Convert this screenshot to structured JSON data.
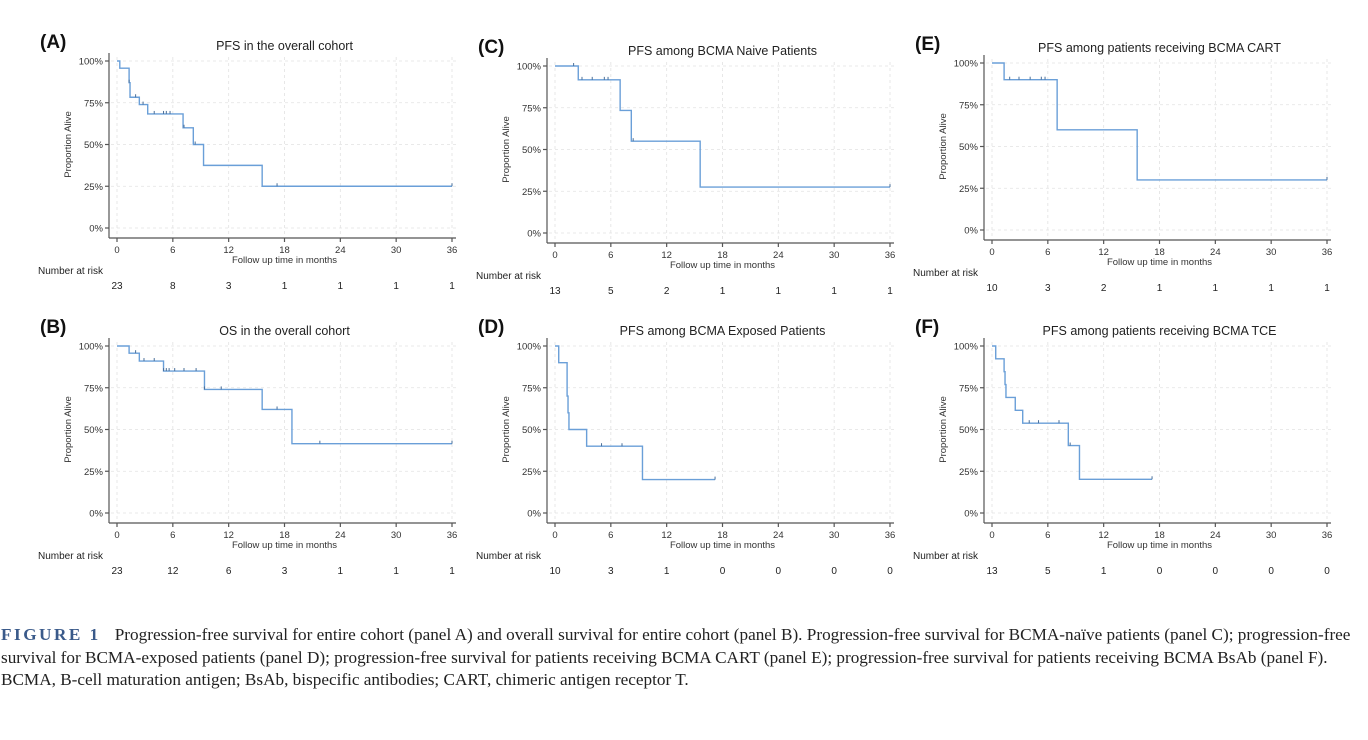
{
  "figure": {
    "label": "FIGURE 1",
    "caption": "Progression-free survival for entire cohort (panel A) and overall survival for entire cohort (panel B). Progression-free survival for BCMA-naïve patients (panel C); progression-free survival for BCMA-exposed patients (panel D); progression-free survival for patients receiving BCMA CART (panel E); progression-free survival for patients receiving BCMA BsAb (panel F). BCMA, B-cell maturation antigen; BsAb, bispecific antibodies; CART, chimeric antigen receptor T."
  },
  "style": {
    "curve_color": "#6a9fd8",
    "label_color": "#3a5a8a"
  },
  "chart_data": [
    {
      "id": "A",
      "type": "line",
      "panel_label": "(A)",
      "title": "PFS in the overall cohort",
      "xlabel": "Follow up time in months",
      "ylabel": "Proportion Alive",
      "xlim": [
        0,
        36
      ],
      "ylim": [
        0,
        1
      ],
      "grid": true,
      "xticks": [
        "0",
        "6",
        "12",
        "18",
        "24",
        "30",
        "36"
      ],
      "yticks": [
        "0%",
        "25%",
        "50%",
        "75%",
        "100%"
      ],
      "risk_label": "Number at risk",
      "risk": [
        23,
        8,
        3,
        1,
        1,
        1,
        1
      ],
      "steps": [
        [
          0,
          1.0
        ],
        [
          0.3,
          0.957
        ],
        [
          1.3,
          0.87
        ],
        [
          1.4,
          0.783
        ],
        [
          2.4,
          0.739
        ],
        [
          3.3,
          0.683
        ],
        [
          7.1,
          0.6
        ],
        [
          8.2,
          0.5
        ],
        [
          9.3,
          0.375
        ],
        [
          15.6,
          0.25
        ]
      ],
      "end": 36,
      "censored": [
        1.3,
        2.0,
        2.8,
        4.0,
        5.0,
        5.3,
        5.7,
        7.2,
        8.4,
        17.2,
        36
      ]
    },
    {
      "id": "B",
      "type": "line",
      "panel_label": "(B)",
      "title": "OS in the overall cohort",
      "xlabel": "Follow up time in months",
      "ylabel": "Proportion Alive",
      "xlim": [
        0,
        36
      ],
      "ylim": [
        0,
        1
      ],
      "grid": true,
      "xticks": [
        "0",
        "6",
        "12",
        "18",
        "24",
        "30",
        "36"
      ],
      "yticks": [
        "0%",
        "25%",
        "50%",
        "75%",
        "100%"
      ],
      "risk_label": "Number at risk",
      "risk": [
        23,
        12,
        6,
        3,
        1,
        1,
        1
      ],
      "steps": [
        [
          0,
          1.0
        ],
        [
          1.3,
          0.957
        ],
        [
          2.4,
          0.91
        ],
        [
          5.0,
          0.85
        ],
        [
          9.4,
          0.74
        ],
        [
          15.6,
          0.62
        ],
        [
          18.8,
          0.415
        ]
      ],
      "end": 36,
      "censored": [
        2.0,
        2.9,
        4.0,
        5.0,
        5.3,
        5.6,
        6.2,
        7.2,
        8.5,
        9.4,
        11.2,
        17.2,
        21.8,
        36
      ]
    },
    {
      "id": "C",
      "type": "line",
      "panel_label": "(C)",
      "title": "PFS among BCMA Naive Patients",
      "xlabel": "Follow up time in months",
      "ylabel": "Proportion Alive",
      "xlim": [
        0,
        36
      ],
      "ylim": [
        0,
        1
      ],
      "grid": true,
      "xticks": [
        "0",
        "6",
        "12",
        "18",
        "24",
        "30",
        "36"
      ],
      "yticks": [
        "0%",
        "25%",
        "50%",
        "75%",
        "100%"
      ],
      "risk_label": "Number at risk",
      "risk": [
        13,
        5,
        2,
        1,
        1,
        1,
        1
      ],
      "steps": [
        [
          0,
          1.0
        ],
        [
          2.5,
          0.917
        ],
        [
          7.0,
          0.734
        ],
        [
          8.2,
          0.55
        ],
        [
          15.6,
          0.275
        ]
      ],
      "end": 36,
      "censored": [
        2.0,
        2.9,
        4.0,
        5.3,
        5.7,
        8.4,
        36
      ]
    },
    {
      "id": "D",
      "type": "line",
      "panel_label": "(D)",
      "title": "PFS among BCMA Exposed Patients",
      "xlabel": "Follow up time in months",
      "ylabel": "Proportion Alive",
      "xlim": [
        0,
        36
      ],
      "ylim": [
        0,
        1
      ],
      "grid": true,
      "xticks": [
        "0",
        "6",
        "12",
        "18",
        "24",
        "30",
        "36"
      ],
      "yticks": [
        "0%",
        "25%",
        "50%",
        "75%",
        "100%"
      ],
      "risk_label": "Number at risk",
      "risk": [
        10,
        3,
        1,
        0,
        0,
        0,
        0
      ],
      "steps": [
        [
          0,
          1.0
        ],
        [
          0.4,
          0.9
        ],
        [
          1.3,
          0.7
        ],
        [
          1.4,
          0.6
        ],
        [
          1.5,
          0.5
        ],
        [
          3.4,
          0.4
        ],
        [
          9.4,
          0.2
        ]
      ],
      "end": 17.2,
      "censored": [
        5.0,
        7.2,
        17.2
      ]
    },
    {
      "id": "E",
      "type": "line",
      "panel_label": "(E)",
      "title": "PFS among patients receiving BCMA CART",
      "xlabel": "Follow up time in months",
      "ylabel": "Proportion Alive",
      "xlim": [
        0,
        36
      ],
      "ylim": [
        0,
        1
      ],
      "grid": true,
      "xticks": [
        "0",
        "6",
        "12",
        "18",
        "24",
        "30",
        "36"
      ],
      "yticks": [
        "0%",
        "25%",
        "50%",
        "75%",
        "100%"
      ],
      "risk_label": "Number at risk",
      "risk": [
        10,
        3,
        2,
        1,
        1,
        1,
        1
      ],
      "steps": [
        [
          0,
          1.0
        ],
        [
          1.3,
          0.9
        ],
        [
          7.0,
          0.6
        ],
        [
          15.6,
          0.3
        ]
      ],
      "end": 36,
      "censored": [
        1.9,
        2.9,
        4.1,
        5.3,
        5.7,
        36
      ]
    },
    {
      "id": "F",
      "type": "line",
      "panel_label": "(F)",
      "title": "PFS among patients receiving BCMA TCE",
      "xlabel": "Follow up time in months",
      "ylabel": "Proportion Alive",
      "xlim": [
        0,
        36
      ],
      "ylim": [
        0,
        1
      ],
      "grid": true,
      "xticks": [
        "0",
        "6",
        "12",
        "18",
        "24",
        "30",
        "36"
      ],
      "yticks": [
        "0%",
        "25%",
        "50%",
        "75%",
        "100%"
      ],
      "risk_label": "Number at risk",
      "risk": [
        13,
        5,
        1,
        0,
        0,
        0,
        0
      ],
      "steps": [
        [
          0,
          1.0
        ],
        [
          0.4,
          0.923
        ],
        [
          1.3,
          0.846
        ],
        [
          1.4,
          0.769
        ],
        [
          1.5,
          0.692
        ],
        [
          2.5,
          0.615
        ],
        [
          3.3,
          0.538
        ],
        [
          8.2,
          0.404
        ],
        [
          9.4,
          0.202
        ]
      ],
      "end": 17.2,
      "censored": [
        4.0,
        5.0,
        7.2,
        8.4,
        17.2
      ]
    }
  ]
}
